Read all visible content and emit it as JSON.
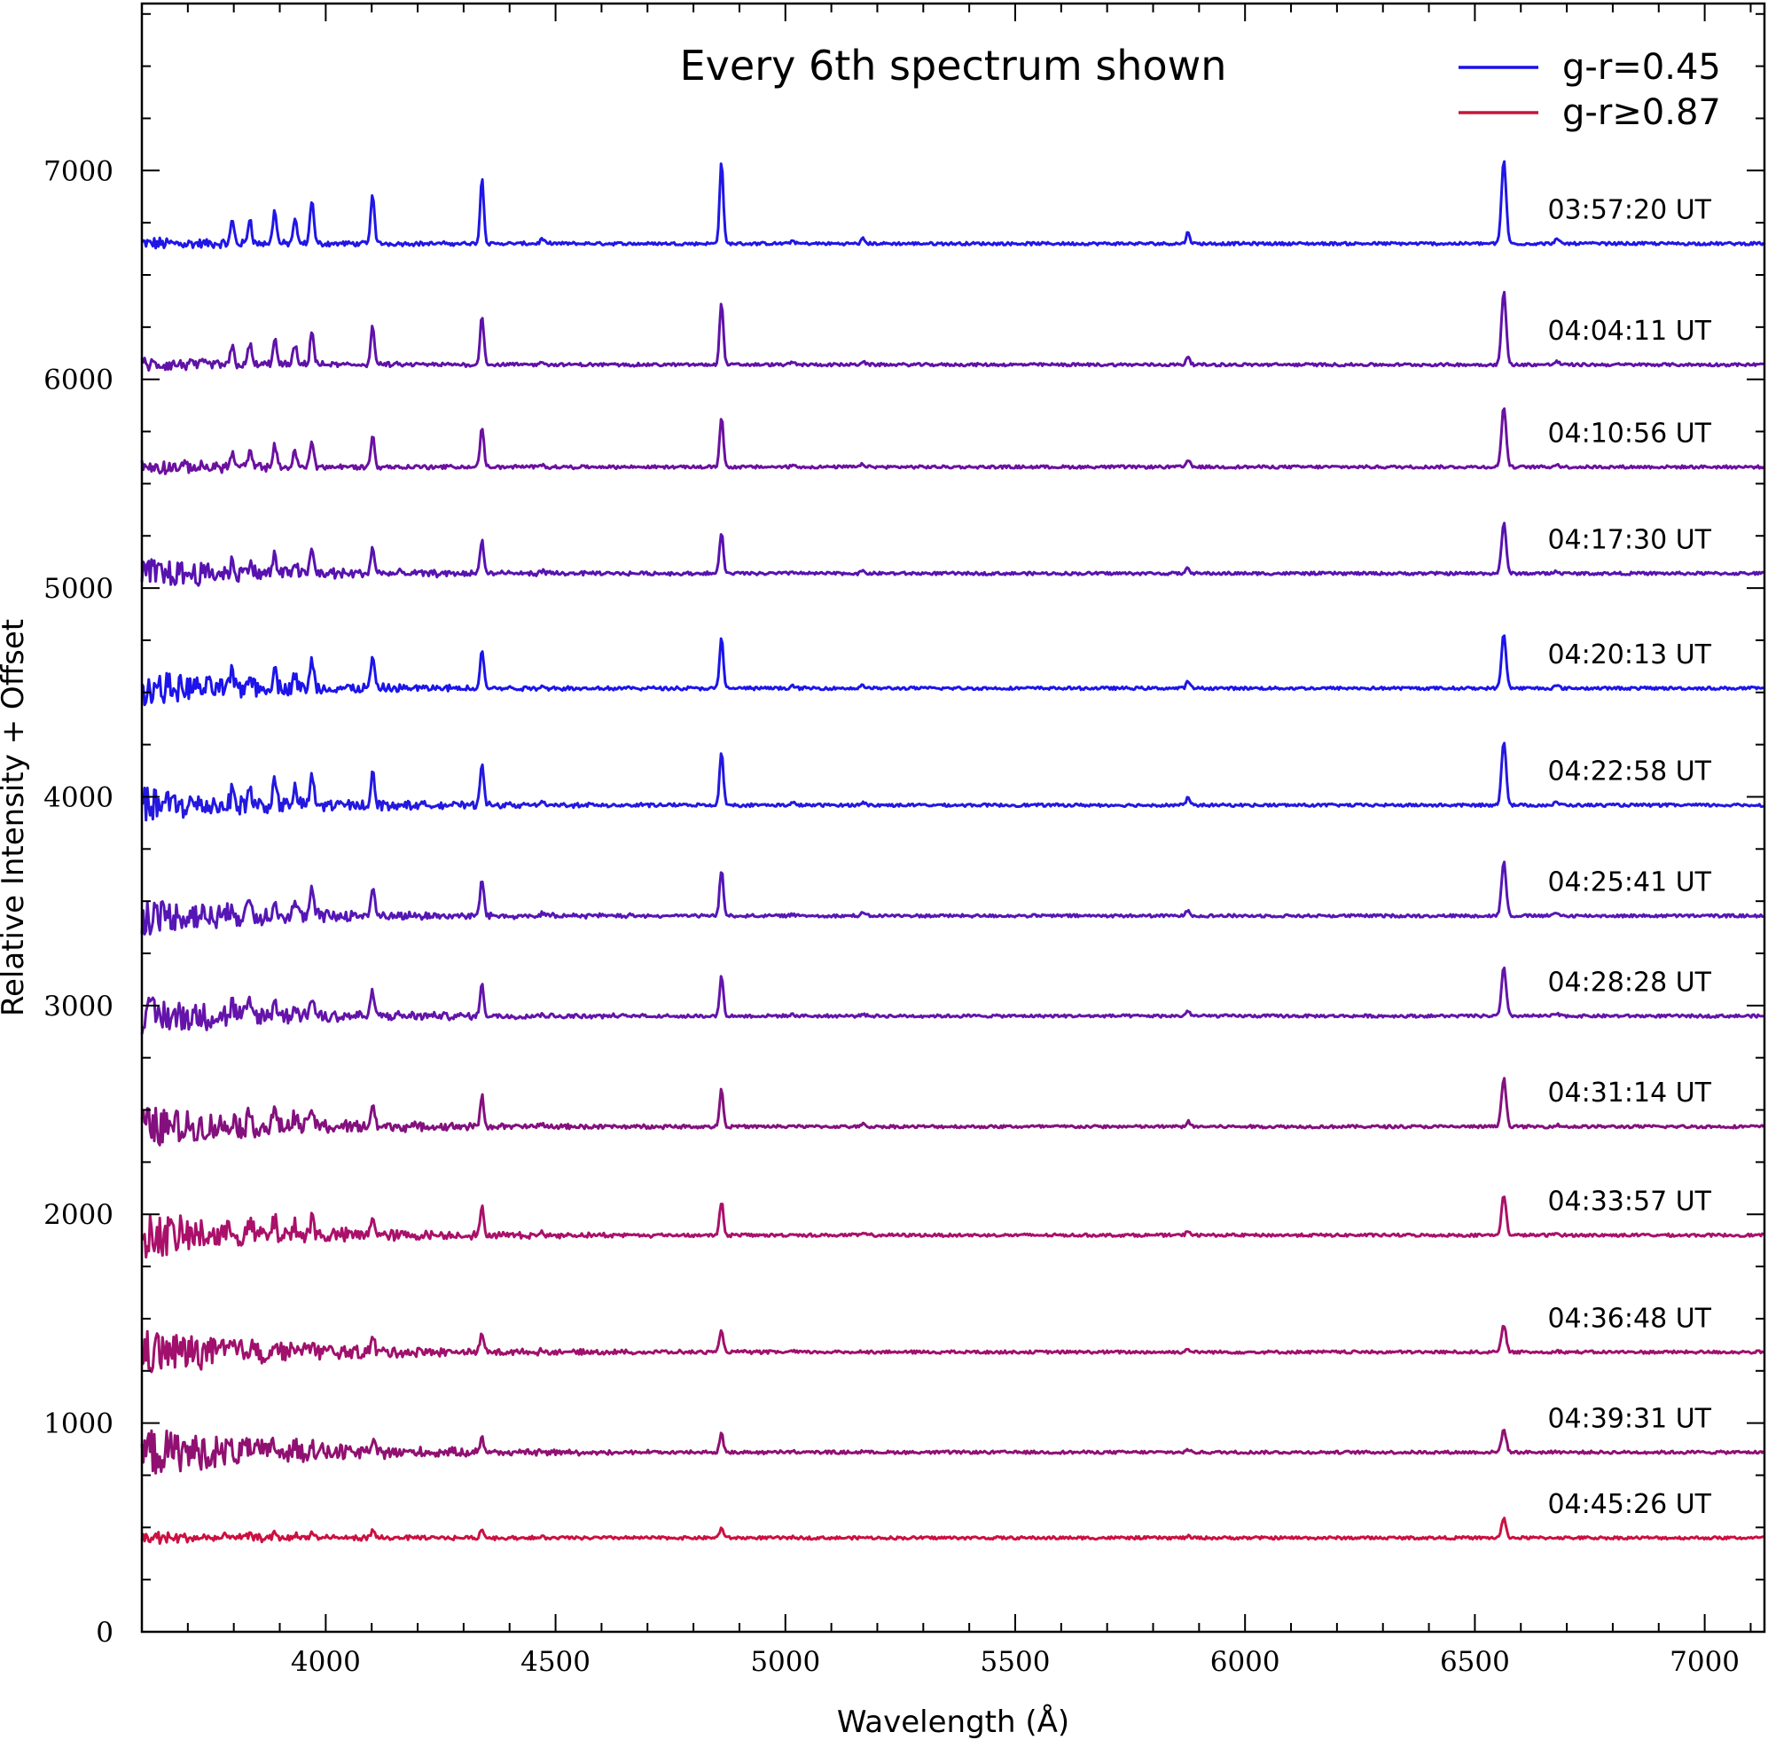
{
  "chart_data": {
    "type": "line",
    "title": "Every 6th spectrum shown",
    "xlabel": "Wavelength (Å)",
    "ylabel": "Relative Intensity + Offset",
    "xlim": [
      3600,
      7130
    ],
    "ylim": [
      0,
      7800
    ],
    "xticks": [
      4000,
      4500,
      5000,
      5500,
      6000,
      6500,
      7000
    ],
    "xtick_labels": [
      "4000",
      "4500",
      "5000",
      "5500",
      "6000",
      "6500",
      "7000"
    ],
    "yticks": [
      0,
      1000,
      2000,
      3000,
      4000,
      5000,
      6000,
      7000
    ],
    "ytick_labels": [
      "0",
      "1000",
      "2000",
      "3000",
      "4000",
      "5000",
      "6000",
      "7000"
    ],
    "legend": [
      {
        "label": "g-r=0.45",
        "color": "#1b10e8"
      },
      {
        "label": "g-r≥0.87",
        "color": "#c8143a"
      }
    ],
    "emission_lines_angstrom": [
      3797,
      3835,
      3889,
      3933,
      3970,
      4102,
      4340,
      4471,
      4861,
      5016,
      5169,
      5876,
      6563,
      6678
    ],
    "series": [
      {
        "name": "03:57:20 UT",
        "baseline": 6650,
        "halpha_height": 400,
        "hbeta_height": 390,
        "noise": 30,
        "color": "#2016e6"
      },
      {
        "name": "04:04:11 UT",
        "baseline": 6070,
        "halpha_height": 350,
        "hbeta_height": 300,
        "noise": 35,
        "color": "#6012a8"
      },
      {
        "name": "04:10:56 UT",
        "baseline": 5580,
        "halpha_height": 290,
        "hbeta_height": 240,
        "noise": 35,
        "color": "#6c10a0"
      },
      {
        "name": "04:17:30 UT",
        "baseline": 5070,
        "halpha_height": 240,
        "hbeta_height": 200,
        "noise": 75,
        "color": "#5812b0"
      },
      {
        "name": "04:20:13 UT",
        "baseline": 4520,
        "halpha_height": 260,
        "hbeta_height": 240,
        "noise": 80,
        "color": "#1c14ea"
      },
      {
        "name": "04:22:58 UT",
        "baseline": 3960,
        "halpha_height": 310,
        "hbeta_height": 260,
        "noise": 85,
        "color": "#2418e0"
      },
      {
        "name": "04:25:41 UT",
        "baseline": 3430,
        "halpha_height": 260,
        "hbeta_height": 220,
        "noise": 90,
        "color": "#5616b6"
      },
      {
        "name": "04:28:28 UT",
        "baseline": 2950,
        "halpha_height": 230,
        "hbeta_height": 190,
        "noise": 95,
        "color": "#6414aa"
      },
      {
        "name": "04:31:14 UT",
        "baseline": 2420,
        "halpha_height": 230,
        "hbeta_height": 180,
        "noise": 100,
        "color": "#84107e"
      },
      {
        "name": "04:33:57 UT",
        "baseline": 1900,
        "halpha_height": 190,
        "hbeta_height": 160,
        "noise": 110,
        "color": "#aa106a"
      },
      {
        "name": "04:36:48 UT",
        "baseline": 1340,
        "halpha_height": 130,
        "hbeta_height": 110,
        "noise": 110,
        "color": "#a0106c"
      },
      {
        "name": "04:39:31 UT",
        "baseline": 860,
        "halpha_height": 110,
        "hbeta_height": 90,
        "noise": 120,
        "color": "#901072"
      },
      {
        "name": "04:45:26 UT",
        "baseline": 450,
        "halpha_height": 90,
        "hbeta_height": 50,
        "noise": 30,
        "color": "#cc1040"
      }
    ]
  }
}
